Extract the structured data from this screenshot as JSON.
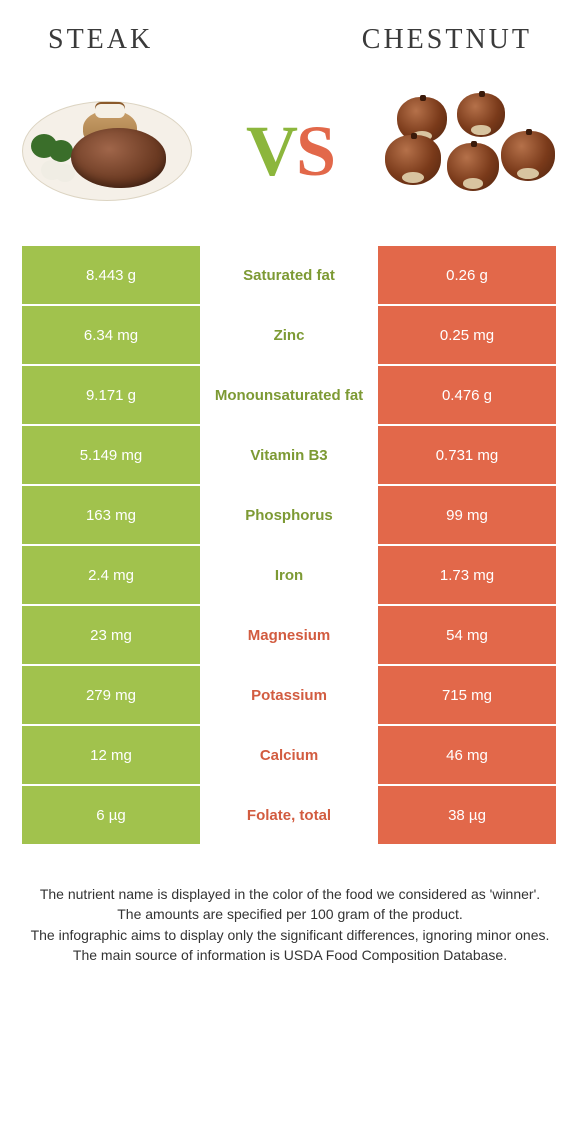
{
  "header": {
    "left_title": "Steak",
    "right_title": "Chestnut"
  },
  "vs": {
    "v": "V",
    "s": "S"
  },
  "colors": {
    "left_bg": "#a1c24d",
    "right_bg": "#e2684a",
    "left_text": "#7d9a34",
    "right_text": "#d25c40",
    "page_bg": "#ffffff"
  },
  "nutrients": [
    {
      "name": "Saturated fat",
      "left": "8.443 g",
      "right": "0.26 g",
      "winner": "left"
    },
    {
      "name": "Zinc",
      "left": "6.34 mg",
      "right": "0.25 mg",
      "winner": "left"
    },
    {
      "name": "Monounsaturated fat",
      "left": "9.171 g",
      "right": "0.476 g",
      "winner": "left"
    },
    {
      "name": "Vitamin B3",
      "left": "5.149 mg",
      "right": "0.731 mg",
      "winner": "left"
    },
    {
      "name": "Phosphorus",
      "left": "163 mg",
      "right": "99 mg",
      "winner": "left"
    },
    {
      "name": "Iron",
      "left": "2.4 mg",
      "right": "1.73 mg",
      "winner": "left"
    },
    {
      "name": "Magnesium",
      "left": "23 mg",
      "right": "54 mg",
      "winner": "right"
    },
    {
      "name": "Potassium",
      "left": "279 mg",
      "right": "715 mg",
      "winner": "right"
    },
    {
      "name": "Calcium",
      "left": "12 mg",
      "right": "46 mg",
      "winner": "right"
    },
    {
      "name": "Folate, total",
      "left": "6 µg",
      "right": "38 µg",
      "winner": "right"
    }
  ],
  "footnotes": {
    "line1": "The nutrient name is displayed in the color of the food we considered as 'winner'.",
    "line2": "The amounts are specified per 100 gram of the product.",
    "line3": "The infographic aims to display only the significant differences, ignoring minor ones.",
    "line4": "The main source of information is USDA Food Composition Database."
  }
}
